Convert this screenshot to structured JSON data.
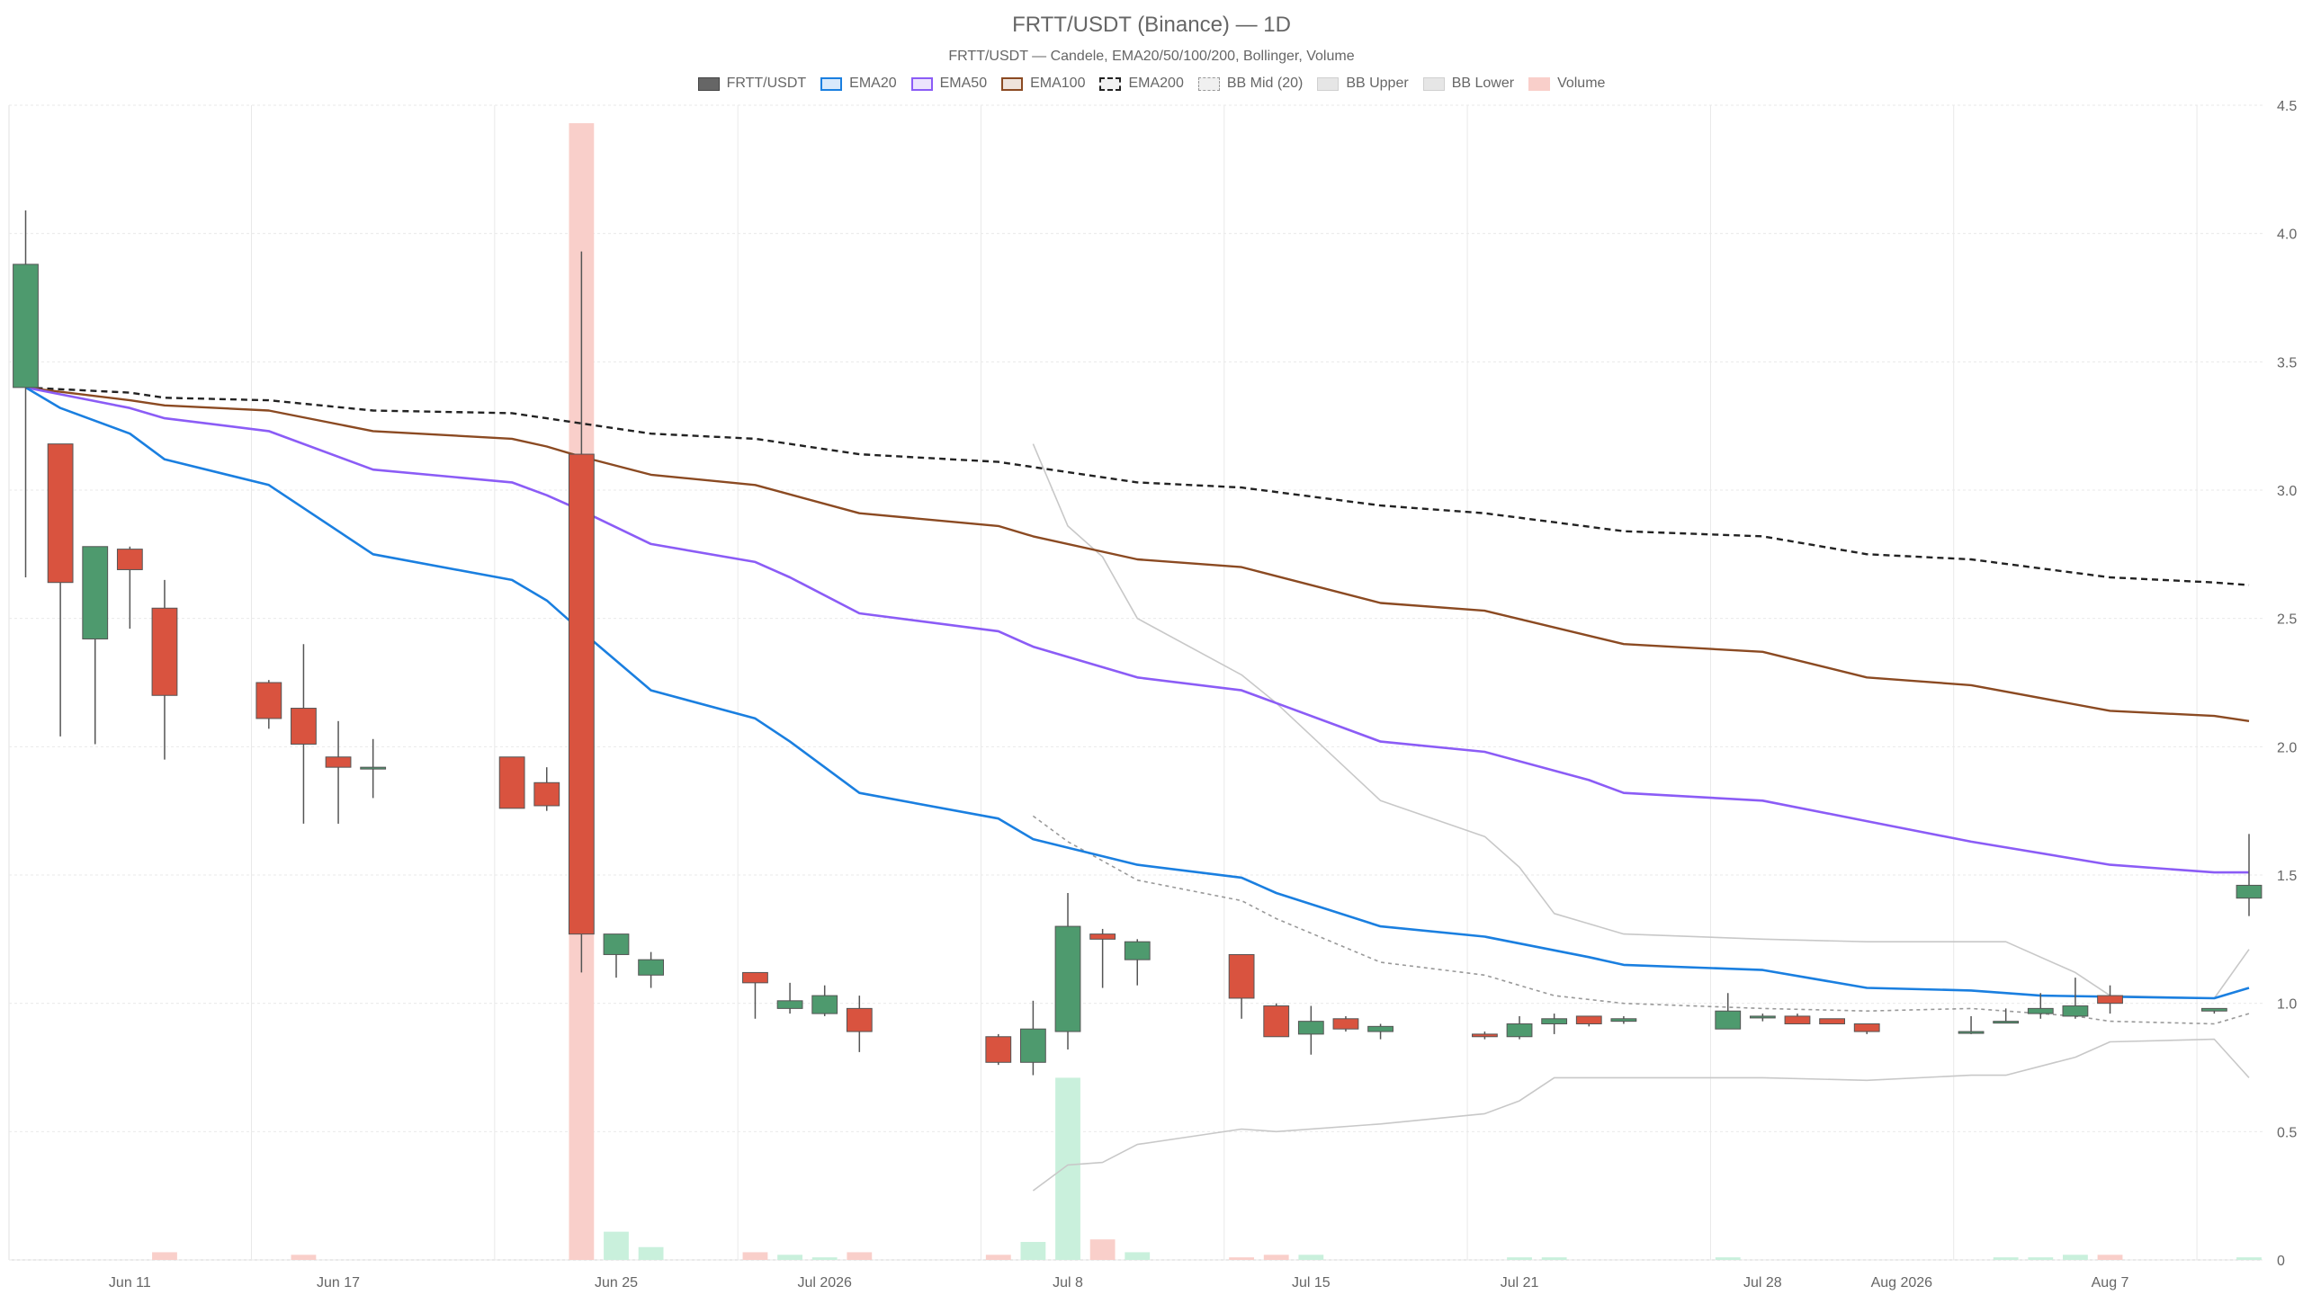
{
  "chart_data": {
    "type": "candlestick",
    "title": "FRTT/USDT (Binance) — 1D",
    "subtitle": "FRTT/USDT — Candele, EMA20/50/100/200, Bollinger, Volume",
    "legend_placement": "top-center",
    "grid": true,
    "ylim": [
      0,
      4.5
    ],
    "y_ticks": [
      0,
      0.5,
      1.0,
      1.5,
      2.0,
      2.5,
      3.0,
      3.5,
      4.0,
      4.5
    ],
    "y_tick_labels": [
      "0",
      "0.5",
      "1.0",
      "1.5",
      "2.0",
      "2.5",
      "3.0",
      "3.5",
      "4.0",
      "4.5"
    ],
    "x_ticks": [
      {
        "label": "Jun 11",
        "day": 3
      },
      {
        "label": "Jun 17",
        "day": 9
      },
      {
        "label": "Jun 25",
        "day": 17
      },
      {
        "label": "Jul 2026",
        "day": 23
      },
      {
        "label": "Jul 8",
        "day": 30
      },
      {
        "label": "Jul 15",
        "day": 37
      },
      {
        "label": "Jul 21",
        "day": 43
      },
      {
        "label": "Jul 28",
        "day": 50
      },
      {
        "label": "Aug 2026",
        "day": 54
      },
      {
        "label": "Aug 7",
        "day": 60
      }
    ],
    "x_gridlines": [
      6.5,
      13.5,
      20.5,
      27.5,
      34.5,
      41.5,
      48.5,
      55.5,
      62.5
    ],
    "colors": {
      "up": "#4e9a6e",
      "down": "#d9533f",
      "wick": "#555555",
      "ema20": "#1a7fe0",
      "ema50": "#8b5cf6",
      "ema100": "#8b4a22",
      "ema200": "#222222",
      "bb_mid": "#999999",
      "bb_band": "#c8c8c8",
      "vol_up": "#c9f0dc",
      "vol_down": "#f9cfca",
      "grid": "#e9e9e9"
    },
    "legend": [
      {
        "label": "FRTT/USDT",
        "key": "candle"
      },
      {
        "label": "EMA20",
        "key": "ema20"
      },
      {
        "label": "EMA50",
        "key": "ema50"
      },
      {
        "label": "EMA100",
        "key": "ema100"
      },
      {
        "label": "EMA200",
        "key": "ema200"
      },
      {
        "label": "BB Mid (20)",
        "key": "bbmid"
      },
      {
        "label": "BB Upper",
        "key": "bbupper"
      },
      {
        "label": "BB Lower",
        "key": "bblower"
      },
      {
        "label": "Volume",
        "key": "volume"
      }
    ],
    "candles": [
      {
        "day": 0,
        "date": "Jun 8",
        "o": 3.4,
        "h": 4.09,
        "l": 2.66,
        "c": 3.88,
        "v": 0.0
      },
      {
        "day": 1,
        "date": "Jun 9",
        "o": 3.18,
        "h": 3.18,
        "l": 2.04,
        "c": 2.64,
        "v": 0.0
      },
      {
        "day": 2,
        "date": "Jun 10",
        "o": 2.42,
        "h": 2.78,
        "l": 2.01,
        "c": 2.78,
        "v": 0.0
      },
      {
        "day": 3,
        "date": "Jun 11",
        "o": 2.77,
        "h": 2.78,
        "l": 2.46,
        "c": 2.69,
        "v": 0.0
      },
      {
        "day": 4,
        "date": "Jun 12",
        "o": 2.54,
        "h": 2.65,
        "l": 1.95,
        "c": 2.2,
        "v": 0.03
      },
      {
        "day": 7,
        "date": "Jun 15",
        "o": 2.25,
        "h": 2.26,
        "l": 2.07,
        "c": 2.11,
        "v": 0.0
      },
      {
        "day": 8,
        "date": "Jun 16",
        "o": 2.15,
        "h": 2.4,
        "l": 1.7,
        "c": 2.01,
        "v": 0.02
      },
      {
        "day": 9,
        "date": "Jun 17",
        "o": 1.96,
        "h": 2.1,
        "l": 1.7,
        "c": 1.92,
        "v": 0.0
      },
      {
        "day": 10,
        "date": "Jun 18",
        "o": 1.92,
        "h": 2.03,
        "l": 1.8,
        "c": 1.92,
        "v": 0.0
      },
      {
        "day": 14,
        "date": "Jun 22",
        "o": 1.96,
        "h": 1.96,
        "l": 1.76,
        "c": 1.76,
        "v": 0.0
      },
      {
        "day": 15,
        "date": "Jun 23",
        "o": 1.86,
        "h": 1.92,
        "l": 1.75,
        "c": 1.77,
        "v": 0.0
      },
      {
        "day": 16,
        "date": "Jun 24",
        "o": 3.14,
        "h": 3.93,
        "l": 1.12,
        "c": 1.27,
        "v": 4.43
      },
      {
        "day": 17,
        "date": "Jun 25",
        "o": 1.19,
        "h": 1.27,
        "l": 1.1,
        "c": 1.27,
        "v": 0.11
      },
      {
        "day": 18,
        "date": "Jun 26",
        "o": 1.11,
        "h": 1.2,
        "l": 1.06,
        "c": 1.17,
        "v": 0.05
      },
      {
        "day": 21,
        "date": "Jun 29",
        "o": 1.12,
        "h": 1.12,
        "l": 0.94,
        "c": 1.08,
        "v": 0.03
      },
      {
        "day": 22,
        "date": "Jun 30",
        "o": 0.98,
        "h": 1.08,
        "l": 0.96,
        "c": 1.01,
        "v": 0.02
      },
      {
        "day": 23,
        "date": "Jul 1",
        "o": 0.96,
        "h": 1.07,
        "l": 0.95,
        "c": 1.03,
        "v": 0.01
      },
      {
        "day": 24,
        "date": "Jul 2",
        "o": 0.98,
        "h": 1.03,
        "l": 0.81,
        "c": 0.89,
        "v": 0.03
      },
      {
        "day": 28,
        "date": "Jul 6",
        "o": 0.87,
        "h": 0.88,
        "l": 0.76,
        "c": 0.77,
        "v": 0.02
      },
      {
        "day": 29,
        "date": "Jul 7",
        "o": 0.77,
        "h": 1.01,
        "l": 0.72,
        "c": 0.9,
        "v": 0.07
      },
      {
        "day": 30,
        "date": "Jul 8",
        "o": 0.89,
        "h": 1.43,
        "l": 0.82,
        "c": 1.3,
        "v": 0.71
      },
      {
        "day": 31,
        "date": "Jul 9",
        "o": 1.27,
        "h": 1.29,
        "l": 1.06,
        "c": 1.25,
        "v": 0.08
      },
      {
        "day": 32,
        "date": "Jul 10",
        "o": 1.17,
        "h": 1.25,
        "l": 1.07,
        "c": 1.24,
        "v": 0.03
      },
      {
        "day": 35,
        "date": "Jul 13",
        "o": 1.19,
        "h": 1.19,
        "l": 0.94,
        "c": 1.02,
        "v": 0.01
      },
      {
        "day": 36,
        "date": "Jul 14",
        "o": 0.99,
        "h": 1.0,
        "l": 0.87,
        "c": 0.87,
        "v": 0.02
      },
      {
        "day": 37,
        "date": "Jul 15",
        "o": 0.88,
        "h": 0.99,
        "l": 0.8,
        "c": 0.93,
        "v": 0.02
      },
      {
        "day": 38,
        "date": "Jul 16",
        "o": 0.94,
        "h": 0.95,
        "l": 0.89,
        "c": 0.9,
        "v": 0.0
      },
      {
        "day": 39,
        "date": "Jul 17",
        "o": 0.89,
        "h": 0.92,
        "l": 0.86,
        "c": 0.91,
        "v": 0.0
      },
      {
        "day": 42,
        "date": "Jul 20",
        "o": 0.88,
        "h": 0.89,
        "l": 0.86,
        "c": 0.87,
        "v": 0.0
      },
      {
        "day": 43,
        "date": "Jul 21",
        "o": 0.87,
        "h": 0.95,
        "l": 0.86,
        "c": 0.92,
        "v": 0.01
      },
      {
        "day": 44,
        "date": "Jul 22",
        "o": 0.92,
        "h": 0.96,
        "l": 0.88,
        "c": 0.94,
        "v": 0.01
      },
      {
        "day": 45,
        "date": "Jul 23",
        "o": 0.95,
        "h": 0.95,
        "l": 0.91,
        "c": 0.92,
        "v": 0.0
      },
      {
        "day": 46,
        "date": "Jul 24",
        "o": 0.93,
        "h": 0.95,
        "l": 0.92,
        "c": 0.94,
        "v": 0.0
      },
      {
        "day": 49,
        "date": "Jul 27",
        "o": 0.9,
        "h": 1.04,
        "l": 0.9,
        "c": 0.97,
        "v": 0.01
      },
      {
        "day": 50,
        "date": "Jul 28",
        "o": 0.95,
        "h": 0.96,
        "l": 0.93,
        "c": 0.95,
        "v": 0.0
      },
      {
        "day": 51,
        "date": "Jul 29",
        "o": 0.95,
        "h": 0.96,
        "l": 0.92,
        "c": 0.92,
        "v": 0.0
      },
      {
        "day": 52,
        "date": "Jul 30",
        "o": 0.94,
        "h": 0.94,
        "l": 0.92,
        "c": 0.92,
        "v": 0.0
      },
      {
        "day": 53,
        "date": "Jul 31",
        "o": 0.92,
        "h": 0.92,
        "l": 0.88,
        "c": 0.89,
        "v": 0.0
      },
      {
        "day": 56,
        "date": "Aug 3",
        "o": 0.89,
        "h": 0.95,
        "l": 0.88,
        "c": 0.89,
        "v": 0.0
      },
      {
        "day": 57,
        "date": "Aug 4",
        "o": 0.93,
        "h": 0.98,
        "l": 0.93,
        "c": 0.93,
        "v": 0.01
      },
      {
        "day": 58,
        "date": "Aug 5",
        "o": 0.96,
        "h": 1.04,
        "l": 0.94,
        "c": 0.98,
        "v": 0.01
      },
      {
        "day": 59,
        "date": "Aug 6",
        "o": 0.95,
        "h": 1.1,
        "l": 0.94,
        "c": 0.99,
        "v": 0.02
      },
      {
        "day": 60,
        "date": "Aug 7",
        "o": 1.03,
        "h": 1.07,
        "l": 0.96,
        "c": 1.0,
        "v": 0.02
      },
      {
        "day": 63,
        "date": "Aug 10",
        "o": 0.97,
        "h": 0.98,
        "l": 0.96,
        "c": 0.98,
        "v": 0.0
      },
      {
        "day": 64,
        "date": "Aug 11",
        "o": 1.41,
        "h": 1.66,
        "l": 1.34,
        "c": 1.46,
        "v": 0.01
      }
    ],
    "ema20": [
      [
        0,
        3.4
      ],
      [
        1,
        3.32
      ],
      [
        3,
        3.22
      ],
      [
        4,
        3.12
      ],
      [
        7,
        3.02
      ],
      [
        10,
        2.75
      ],
      [
        14,
        2.65
      ],
      [
        15,
        2.57
      ],
      [
        16,
        2.45
      ],
      [
        18,
        2.22
      ],
      [
        21,
        2.11
      ],
      [
        22,
        2.02
      ],
      [
        24,
        1.82
      ],
      [
        28,
        1.72
      ],
      [
        29,
        1.64
      ],
      [
        32,
        1.54
      ],
      [
        35,
        1.49
      ],
      [
        36,
        1.43
      ],
      [
        39,
        1.3
      ],
      [
        42,
        1.26
      ],
      [
        45,
        1.18
      ],
      [
        46,
        1.15
      ],
      [
        50,
        1.13
      ],
      [
        53,
        1.06
      ],
      [
        56,
        1.05
      ],
      [
        58,
        1.03
      ],
      [
        63,
        1.02
      ],
      [
        64,
        1.06
      ]
    ],
    "ema50": [
      [
        0,
        3.4
      ],
      [
        3,
        3.32
      ],
      [
        4,
        3.28
      ],
      [
        7,
        3.23
      ],
      [
        10,
        3.08
      ],
      [
        14,
        3.03
      ],
      [
        15,
        2.98
      ],
      [
        16,
        2.92
      ],
      [
        18,
        2.79
      ],
      [
        21,
        2.72
      ],
      [
        22,
        2.66
      ],
      [
        24,
        2.52
      ],
      [
        28,
        2.45
      ],
      [
        29,
        2.39
      ],
      [
        32,
        2.27
      ],
      [
        35,
        2.22
      ],
      [
        36,
        2.17
      ],
      [
        39,
        2.02
      ],
      [
        42,
        1.98
      ],
      [
        45,
        1.87
      ],
      [
        46,
        1.82
      ],
      [
        50,
        1.79
      ],
      [
        53,
        1.71
      ],
      [
        56,
        1.63
      ],
      [
        60,
        1.54
      ],
      [
        63,
        1.51
      ],
      [
        64,
        1.51
      ]
    ],
    "ema100": [
      [
        0,
        3.4
      ],
      [
        3,
        3.35
      ],
      [
        4,
        3.33
      ],
      [
        7,
        3.31
      ],
      [
        10,
        3.23
      ],
      [
        14,
        3.2
      ],
      [
        15,
        3.17
      ],
      [
        16,
        3.13
      ],
      [
        18,
        3.06
      ],
      [
        21,
        3.02
      ],
      [
        24,
        2.91
      ],
      [
        28,
        2.86
      ],
      [
        29,
        2.82
      ],
      [
        32,
        2.73
      ],
      [
        35,
        2.7
      ],
      [
        39,
        2.56
      ],
      [
        42,
        2.53
      ],
      [
        46,
        2.4
      ],
      [
        50,
        2.37
      ],
      [
        53,
        2.27
      ],
      [
        56,
        2.24
      ],
      [
        60,
        2.14
      ],
      [
        63,
        2.12
      ],
      [
        64,
        2.1
      ]
    ],
    "ema200": [
      [
        0,
        3.4
      ],
      [
        3,
        3.38
      ],
      [
        4,
        3.36
      ],
      [
        7,
        3.35
      ],
      [
        10,
        3.31
      ],
      [
        14,
        3.3
      ],
      [
        15,
        3.28
      ],
      [
        16,
        3.26
      ],
      [
        18,
        3.22
      ],
      [
        21,
        3.2
      ],
      [
        24,
        3.14
      ],
      [
        28,
        3.11
      ],
      [
        29,
        3.09
      ],
      [
        32,
        3.03
      ],
      [
        35,
        3.01
      ],
      [
        39,
        2.94
      ],
      [
        42,
        2.91
      ],
      [
        46,
        2.84
      ],
      [
        50,
        2.82
      ],
      [
        53,
        2.75
      ],
      [
        56,
        2.73
      ],
      [
        60,
        2.66
      ],
      [
        63,
        2.64
      ],
      [
        64,
        2.63
      ]
    ],
    "bb_mid": [
      [
        29,
        1.73
      ],
      [
        30,
        1.63
      ],
      [
        32,
        1.48
      ],
      [
        35,
        1.4
      ],
      [
        36,
        1.33
      ],
      [
        39,
        1.16
      ],
      [
        42,
        1.11
      ],
      [
        43,
        1.07
      ],
      [
        44,
        1.03
      ],
      [
        46,
        1.0
      ],
      [
        50,
        0.98
      ],
      [
        53,
        0.97
      ],
      [
        56,
        0.98
      ],
      [
        57,
        0.97
      ],
      [
        59,
        0.95
      ],
      [
        60,
        0.93
      ],
      [
        63,
        0.92
      ],
      [
        64,
        0.96
      ]
    ],
    "bb_upper": [
      [
        29,
        3.18
      ],
      [
        30,
        2.86
      ],
      [
        31,
        2.74
      ],
      [
        32,
        2.5
      ],
      [
        35,
        2.28
      ],
      [
        36,
        2.17
      ],
      [
        39,
        1.79
      ],
      [
        42,
        1.65
      ],
      [
        43,
        1.53
      ],
      [
        44,
        1.35
      ],
      [
        46,
        1.27
      ],
      [
        50,
        1.25
      ],
      [
        53,
        1.24
      ],
      [
        56,
        1.24
      ],
      [
        57,
        1.24
      ],
      [
        59,
        1.12
      ],
      [
        60,
        1.03
      ],
      [
        63,
        1.02
      ],
      [
        64,
        1.21
      ]
    ],
    "bb_lower": [
      [
        29,
        0.27
      ],
      [
        30,
        0.37
      ],
      [
        31,
        0.38
      ],
      [
        32,
        0.45
      ],
      [
        35,
        0.51
      ],
      [
        36,
        0.5
      ],
      [
        39,
        0.53
      ],
      [
        42,
        0.57
      ],
      [
        43,
        0.62
      ],
      [
        44,
        0.71
      ],
      [
        46,
        0.71
      ],
      [
        50,
        0.71
      ],
      [
        53,
        0.7
      ],
      [
        56,
        0.72
      ],
      [
        57,
        0.72
      ],
      [
        59,
        0.79
      ],
      [
        60,
        0.85
      ],
      [
        63,
        0.86
      ],
      [
        64,
        0.71
      ]
    ]
  }
}
